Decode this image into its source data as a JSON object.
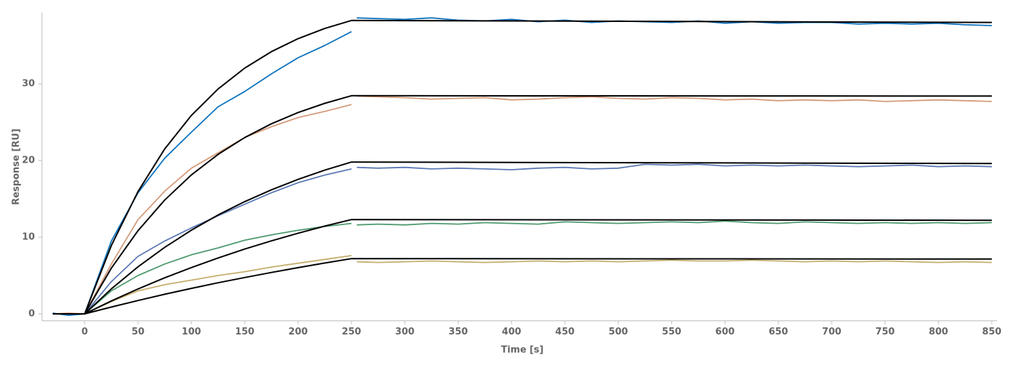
{
  "chart_data": {
    "type": "line",
    "x_label": "Time [s]",
    "y_label": "Response [RU]",
    "xlim": [
      -40,
      855
    ],
    "ylim": [
      -0.9,
      39.3
    ],
    "xticks": [
      0,
      50,
      100,
      150,
      200,
      250,
      300,
      350,
      400,
      450,
      500,
      550,
      600,
      650,
      700,
      750,
      800,
      850
    ],
    "yticks": [
      0,
      10,
      20,
      30
    ],
    "x": [
      -30,
      -15,
      0,
      25,
      50,
      75,
      100,
      125,
      150,
      175,
      200,
      225,
      250,
      252,
      255,
      275,
      300,
      325,
      350,
      375,
      400,
      425,
      450,
      475,
      500,
      525,
      550,
      575,
      600,
      625,
      650,
      675,
      700,
      725,
      750,
      775,
      800,
      825,
      850
    ],
    "series": [
      {
        "color": "#0e72bd",
        "values": [
          0.1,
          -0.2,
          0,
          9.5,
          15.8,
          20.3,
          23.7,
          27.0,
          29.0,
          31.3,
          33.4,
          35.0,
          36.8,
          null,
          38.6,
          38.5,
          38.4,
          38.6,
          38.3,
          38.2,
          38.4,
          38.1,
          38.3,
          38.0,
          38.2,
          38.1,
          38.0,
          38.2,
          37.9,
          38.1,
          37.9,
          38.0,
          38.0,
          37.8,
          37.9,
          37.8,
          37.9,
          37.7,
          37.6
        ]
      },
      {
        "color": "#d49b7a",
        "values": [
          0,
          0.1,
          0,
          6.5,
          12.3,
          16.0,
          19.0,
          21.0,
          23.0,
          24.4,
          25.6,
          26.4,
          27.3,
          null,
          28.4,
          28.3,
          28.2,
          28.0,
          28.1,
          28.2,
          27.9,
          28.0,
          28.2,
          28.3,
          28.1,
          28.0,
          28.2,
          28.1,
          27.9,
          28.0,
          27.8,
          27.9,
          27.8,
          27.9,
          27.7,
          27.8,
          27.9,
          27.8,
          27.7
        ]
      },
      {
        "color": "#5b78b5",
        "values": [
          0,
          0,
          0,
          4.2,
          7.5,
          9.5,
          11.2,
          12.8,
          14.3,
          15.8,
          17.1,
          18.1,
          18.9,
          null,
          19.1,
          19.0,
          19.1,
          18.9,
          19.0,
          18.9,
          18.8,
          19.0,
          19.1,
          18.9,
          19.0,
          19.5,
          19.4,
          19.5,
          19.3,
          19.4,
          19.3,
          19.4,
          19.3,
          19.2,
          19.3,
          19.4,
          19.2,
          19.3,
          19.2
        ]
      },
      {
        "color": "#4d9a6e",
        "values": [
          0,
          0,
          0,
          3.0,
          5.0,
          6.5,
          7.7,
          8.6,
          9.6,
          10.3,
          10.9,
          11.4,
          11.8,
          null,
          11.6,
          11.7,
          11.6,
          11.8,
          11.7,
          11.9,
          11.8,
          11.7,
          12.0,
          11.9,
          11.8,
          11.9,
          12.0,
          11.9,
          12.1,
          11.9,
          11.8,
          12.0,
          11.9,
          11.8,
          11.9,
          11.8,
          11.9,
          11.8,
          11.9
        ]
      },
      {
        "color": "#c4ad6c",
        "values": [
          0,
          0,
          0,
          1.6,
          3.0,
          3.8,
          4.4,
          5.0,
          5.5,
          6.1,
          6.6,
          7.1,
          7.6,
          null,
          6.8,
          6.7,
          6.8,
          6.9,
          6.8,
          6.7,
          6.8,
          6.9,
          6.8,
          6.9,
          6.8,
          6.9,
          7.0,
          6.9,
          6.9,
          7.0,
          6.9,
          6.8,
          6.9,
          6.8,
          6.9,
          6.8,
          6.7,
          6.8,
          6.7
        ]
      }
    ],
    "fit_x": [
      -30,
      0,
      25,
      50,
      75,
      100,
      125,
      150,
      175,
      200,
      225,
      250,
      850
    ],
    "fits": [
      {
        "color": "#000000",
        "values": [
          0,
          0,
          8.92,
          15.95,
          21.51,
          25.88,
          29.33,
          32.05,
          34.2,
          35.89,
          37.22,
          38.26,
          38.0
        ]
      },
      {
        "color": "#000000",
        "values": [
          0,
          0,
          5.96,
          10.85,
          14.84,
          18.12,
          20.8,
          22.99,
          24.79,
          26.26,
          27.46,
          28.45,
          28.4
        ]
      },
      {
        "color": "#000000",
        "values": [
          0,
          0,
          3.26,
          6.14,
          8.68,
          10.92,
          12.9,
          14.64,
          16.18,
          17.54,
          18.74,
          19.8,
          19.6
        ]
      },
      {
        "color": "#000000",
        "values": [
          0,
          0,
          1.68,
          3.25,
          4.7,
          6.04,
          7.29,
          8.45,
          9.52,
          10.52,
          11.44,
          12.3,
          12.2
        ]
      },
      {
        "color": "#000000",
        "values": [
          0,
          0,
          0.89,
          1.74,
          2.55,
          3.32,
          4.05,
          4.74,
          5.4,
          6.03,
          6.63,
          7.2,
          7.15
        ]
      }
    ]
  }
}
